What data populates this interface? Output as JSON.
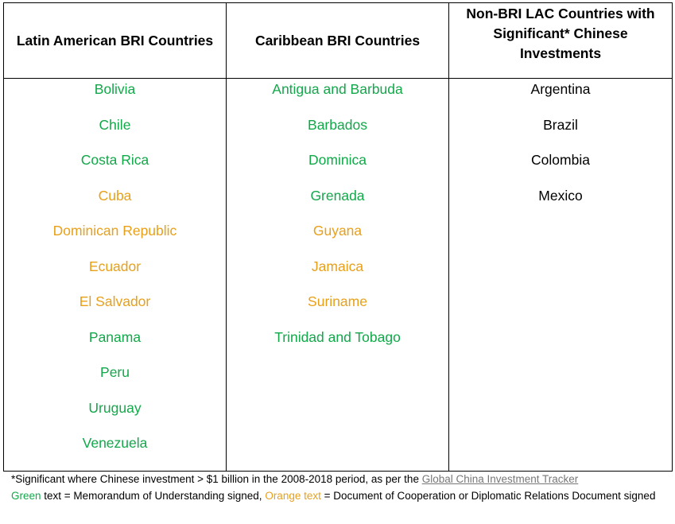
{
  "table": {
    "headers": {
      "latin_american_bri": "Latin American BRI Countries",
      "caribbean_bri": "Caribbean BRI Countries",
      "non_bri": "Non-BRI LAC Countries with Significant* Chinese Investments"
    },
    "latin_american_bri": [
      {
        "name": "Bolivia",
        "status": "green"
      },
      {
        "name": "Chile",
        "status": "green"
      },
      {
        "name": "Costa Rica",
        "status": "green"
      },
      {
        "name": "Cuba",
        "status": "orange"
      },
      {
        "name": "Dominican Republic",
        "status": "orange"
      },
      {
        "name": "Ecuador",
        "status": "orange"
      },
      {
        "name": "El Salvador",
        "status": "orange"
      },
      {
        "name": "Panama",
        "status": "green"
      },
      {
        "name": "Peru",
        "status": "green"
      },
      {
        "name": "Uruguay",
        "status": "green"
      },
      {
        "name": "Venezuela",
        "status": "green"
      }
    ],
    "caribbean_bri": [
      {
        "name": "Antigua and Barbuda",
        "status": "green"
      },
      {
        "name": "Barbados",
        "status": "green"
      },
      {
        "name": "Dominica",
        "status": "green"
      },
      {
        "name": "Grenada",
        "status": "green"
      },
      {
        "name": "Guyana",
        "status": "orange"
      },
      {
        "name": "Jamaica",
        "status": "orange"
      },
      {
        "name": "Suriname",
        "status": "orange"
      },
      {
        "name": "Trinidad and Tobago",
        "status": "green"
      }
    ],
    "non_bri": [
      {
        "name": "Argentina",
        "status": "black"
      },
      {
        "name": "Brazil",
        "status": "black"
      },
      {
        "name": "Colombia",
        "status": "black"
      },
      {
        "name": "Mexico",
        "status": "black"
      }
    ]
  },
  "footnotes": {
    "significant_prefix": "*Significant where Chinese investment > $1 billion in the 2008-2018 period, as per the ",
    "tracker_link": "Global China Investment Tracker",
    "green_label": "Green",
    "green_text": " text = Memorandum of Understanding signed, ",
    "orange_label": "Orange text",
    "orange_text": " = Document of Cooperation or Diplomatic Relations Document signed"
  },
  "colors": {
    "green": "#12a84a",
    "orange": "#e8a01a",
    "black": "#000000",
    "link": "#777777"
  }
}
